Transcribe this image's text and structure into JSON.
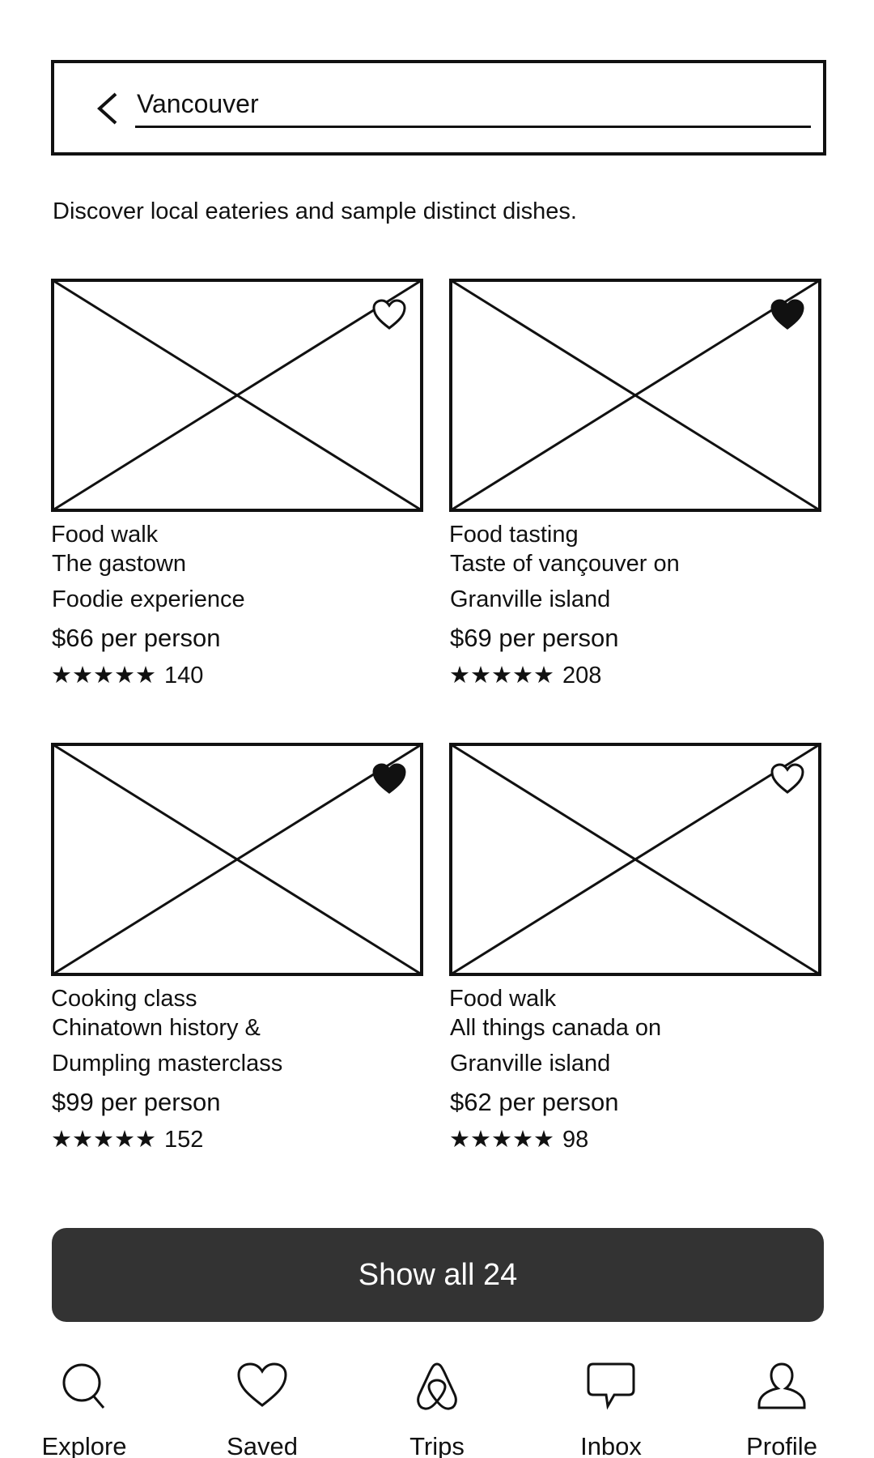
{
  "search": {
    "value": "Vancouver"
  },
  "intro": "Discover local eateries and sample distinct dishes.",
  "cards": [
    {
      "type": "Food walk",
      "title1": "The gastown",
      "title2": "Foodie experience",
      "price": "$66 per person",
      "stars": "★★★★★",
      "reviews": "140",
      "rating": 5,
      "saved": false
    },
    {
      "type": "Food tasting",
      "title1": "Taste of vançouver on",
      "title2": "Granville island",
      "price": "$69 per person",
      "stars": "★★★★★",
      "reviews": "208",
      "rating": 5,
      "saved": true
    },
    {
      "type": "Cooking class",
      "title1": "Chinatown history &",
      "title2": "Dumpling masterclass",
      "price": "$99 per person",
      "stars": "★★★★★",
      "reviews": "152",
      "rating": 5,
      "saved": true
    },
    {
      "type": "Food walk",
      "title1": "All things canada on",
      "title2": "Granville island",
      "price": "$62 per person",
      "stars": "★★★★★",
      "reviews": "98",
      "rating": 5,
      "saved": false
    }
  ],
  "show_all_label": "Show all 24",
  "nav": [
    {
      "label": "Explore",
      "icon": "search-icon"
    },
    {
      "label": "Saved",
      "icon": "heart-icon"
    },
    {
      "label": "Trips",
      "icon": "airbnb-logo-icon"
    },
    {
      "label": "Inbox",
      "icon": "chat-bubble-icon"
    },
    {
      "label": "Profile",
      "icon": "person-icon"
    }
  ]
}
